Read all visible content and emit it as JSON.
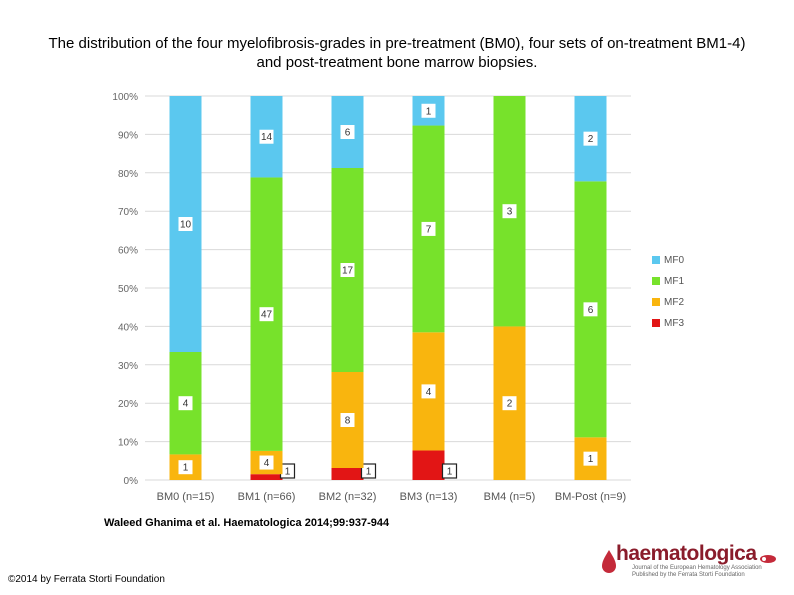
{
  "title": "The distribution of the four myelofibrosis-grades in pre-treatment (BM0), four sets of on-treatment BM1-4) and post-treatment bone marrow biopsies.",
  "citation": "Waleed Ghanima et al. Haematologica 2014;99:937-944",
  "copyright": "©2014 by Ferrata Storti Foundation",
  "logo": {
    "name": "haematologica",
    "subtitle_line1": "Journal of the European Hematology Association",
    "subtitle_line2": "Published by the Ferrata Storti Foundation"
  },
  "colors": {
    "MF0": "#5bc8ef",
    "MF1": "#77e22b",
    "MF2": "#f9b50e",
    "MF3": "#e21515"
  },
  "chart_data": {
    "type": "bar",
    "stacked": true,
    "normalized_percent": true,
    "categories": [
      "BM0 (n=15)",
      "BM1 (n=66)",
      "BM2 (n=32)",
      "BM3 (n=13)",
      "BM4 (n=5)",
      "BM-Post (n=9)"
    ],
    "series": [
      {
        "name": "MF3",
        "values": [
          0,
          1,
          1,
          1,
          0,
          0
        ],
        "labels": [
          "",
          "1",
          "1",
          "1",
          "",
          ""
        ]
      },
      {
        "name": "MF2",
        "values": [
          1,
          4,
          8,
          4,
          2,
          1
        ],
        "labels": [
          "1",
          "4",
          "8",
          "4",
          "2",
          "1"
        ]
      },
      {
        "name": "MF1",
        "values": [
          4,
          47,
          17,
          7,
          3,
          6
        ],
        "labels": [
          "4",
          "47",
          "17",
          "7",
          "3",
          "6"
        ]
      },
      {
        "name": "MF0",
        "values": [
          10,
          14,
          6,
          1,
          0,
          2
        ],
        "labels": [
          "10",
          "14",
          "6",
          "1",
          "",
          "2"
        ]
      }
    ],
    "legend": [
      "MF0",
      "MF1",
      "MF2",
      "MF3"
    ],
    "legend_position": "right",
    "ylim": [
      0,
      100
    ],
    "yticks": [
      "0%",
      "10%",
      "20%",
      "30%",
      "40%",
      "50%",
      "60%",
      "70%",
      "80%",
      "90%",
      "100%"
    ],
    "grid": true,
    "xlabel": "",
    "ylabel": ""
  }
}
